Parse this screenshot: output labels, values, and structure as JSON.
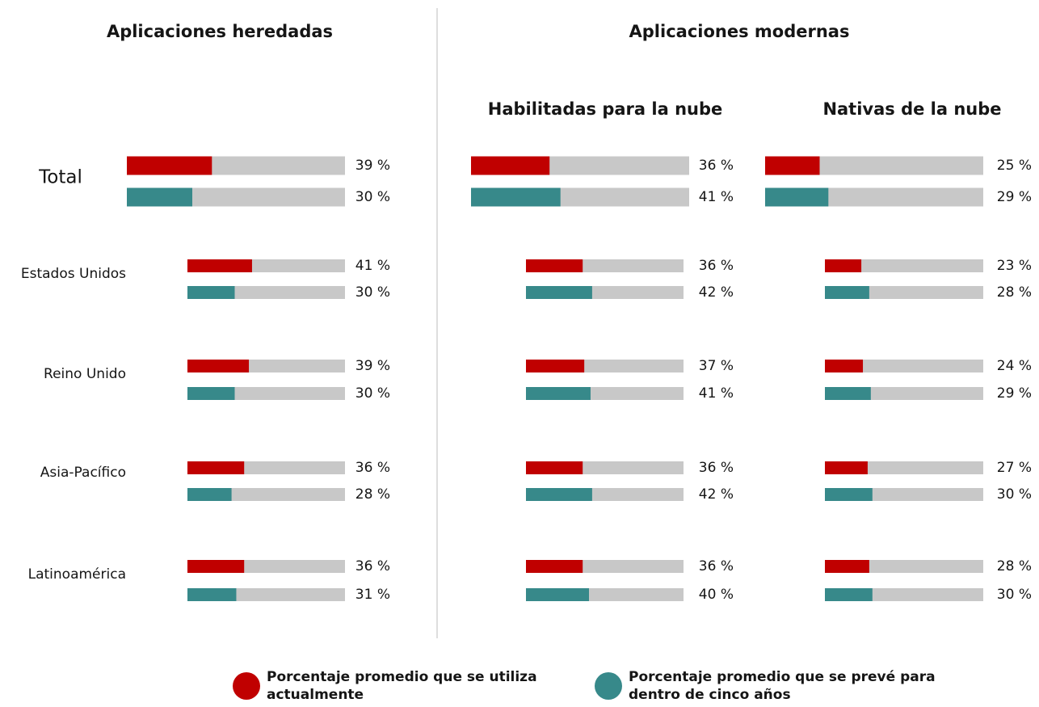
{
  "group_title": "Aplicaciones modernas",
  "chart_data": [
    {
      "type": "bar",
      "title": "Aplicaciones heredadas",
      "xlim": [
        0,
        100
      ],
      "categories": [
        "Total",
        "Estados Unidos",
        "Reino Unido",
        "Asia-Pacífico",
        "Latinoamérica"
      ],
      "series": [
        {
          "name": "Porcentaje promedio que se utiliza actualmente",
          "color": "#c00000",
          "values": [
            39,
            41,
            39,
            36,
            36
          ],
          "value_labels": [
            "39 %",
            "41 %",
            "39 %",
            "36 %",
            "36 %"
          ]
        },
        {
          "name": "Porcentaje promedio que se prevé para dentro de cinco años",
          "color": "#37898a",
          "values": [
            30,
            30,
            30,
            28,
            31
          ],
          "value_labels": [
            "30 %",
            "30 %",
            "30 %",
            "28 %",
            "31 %"
          ]
        }
      ]
    },
    {
      "type": "bar",
      "title": "Habilitadas para la nube",
      "xlim": [
        0,
        100
      ],
      "series": [
        {
          "color": "#c00000",
          "values": [
            36,
            36,
            37,
            36,
            36
          ],
          "value_labels": [
            "36 %",
            "36 %",
            "37 %",
            "36 %",
            "36 %"
          ]
        },
        {
          "color": "#37898a",
          "values": [
            41,
            42,
            41,
            42,
            40
          ],
          "value_labels": [
            "41 %",
            "42 %",
            "41 %",
            "42 %",
            "40 %"
          ]
        }
      ]
    },
    {
      "type": "bar",
      "title": "Nativas de la nube",
      "xlim": [
        0,
        100
      ],
      "series": [
        {
          "color": "#c00000",
          "values": [
            25,
            23,
            24,
            27,
            28
          ],
          "value_labels": [
            "25 %",
            "23 %",
            "24 %",
            "27 %",
            "28 %"
          ]
        },
        {
          "color": "#37898a",
          "values": [
            29,
            28,
            29,
            30,
            30
          ],
          "value_labels": [
            "29 %",
            "28 %",
            "29 %",
            "30 %",
            "30 %"
          ]
        }
      ]
    }
  ]
}
